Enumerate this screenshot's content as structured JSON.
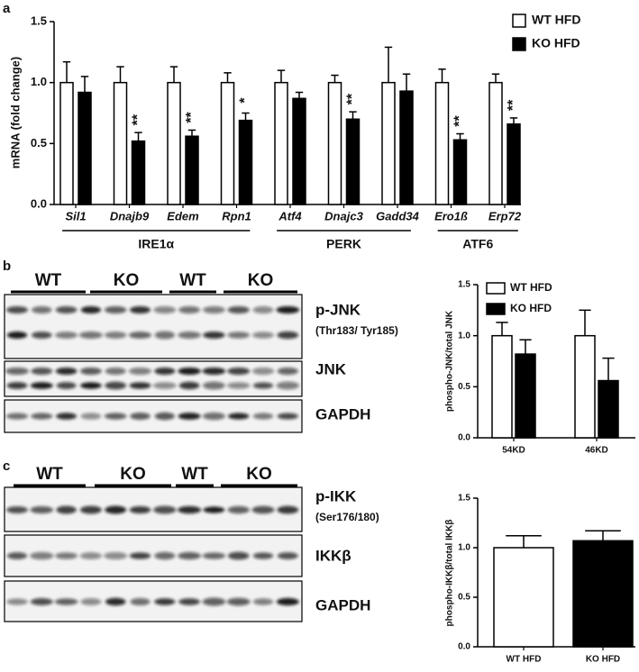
{
  "panel_labels": [
    "a",
    "b",
    "c"
  ],
  "chart_data": [
    {
      "type": "bar",
      "ylabel": "mRNA (fold change)",
      "categories": [
        "Sil1",
        "Dnajb9",
        "Edem",
        "Rpn1",
        "Atf4",
        "Dnajc3",
        "Gadd34",
        "Ero1ß",
        "Erp72"
      ],
      "series": [
        {
          "name": "WT HFD",
          "color": "#ffffff",
          "values": [
            1.0,
            1.0,
            1.0,
            1.0,
            1.0,
            1.0,
            1.0,
            1.0,
            1.0
          ],
          "errors": [
            0.17,
            0.13,
            0.13,
            0.08,
            0.1,
            0.06,
            0.29,
            0.11,
            0.07
          ]
        },
        {
          "name": "KO HFD",
          "color": "#000000",
          "values": [
            0.92,
            0.52,
            0.56,
            0.69,
            0.87,
            0.7,
            0.93,
            0.53,
            0.66
          ],
          "errors": [
            0.13,
            0.07,
            0.05,
            0.06,
            0.05,
            0.06,
            0.14,
            0.05,
            0.05
          ],
          "annotations": [
            null,
            "**",
            "**",
            "*",
            null,
            "**",
            null,
            "**",
            "**"
          ]
        }
      ],
      "groups": [
        {
          "label": "IRE1α",
          "categories": [
            "Sil1",
            "Dnajb9",
            "Edem",
            "Rpn1"
          ]
        },
        {
          "label": "PERK",
          "categories": [
            "Atf4",
            "Dnajc3",
            "Gadd34"
          ]
        },
        {
          "label": "ATF6",
          "categories": [
            "Ero1ß",
            "Erp72"
          ]
        }
      ],
      "ylim": [
        0,
        1.5
      ],
      "yticks": [
        {
          "value": 0,
          "label": "0.0"
        },
        {
          "value": 0.5,
          "label": "0.5"
        },
        {
          "value": 1,
          "label": "1.0"
        },
        {
          "value": 1.5,
          "label": "1.5"
        }
      ]
    },
    {
      "type": "bar",
      "ylabel": "phospho-JNK/total JNK",
      "categories": [
        "54KD",
        "46KD"
      ],
      "series": [
        {
          "name": "WT HFD",
          "color": "#ffffff",
          "values": [
            1.0,
            1.0
          ],
          "errors": [
            0.13,
            0.25
          ]
        },
        {
          "name": "KO HFD",
          "color": "#000000",
          "values": [
            0.82,
            0.56
          ],
          "errors": [
            0.14,
            0.22
          ]
        }
      ],
      "ylim": [
        0,
        1.5
      ],
      "yticks": [
        {
          "value": 0,
          "label": "0.0"
        },
        {
          "value": 0.5,
          "label": "0.5"
        },
        {
          "value": 1,
          "label": "1.0"
        },
        {
          "value": 1.5,
          "label": "1.5"
        }
      ]
    },
    {
      "type": "bar",
      "ylabel": "phospho-IKKβ/total IKKβ",
      "categories": [
        "WT HFD",
        "KO HFD"
      ],
      "values": [
        1.0,
        1.07
      ],
      "errors": [
        0.12,
        0.1
      ],
      "colors": [
        "#ffffff",
        "#000000"
      ],
      "ylim": [
        0,
        1.5
      ],
      "yticks": [
        {
          "value": 0,
          "label": "0.0"
        },
        {
          "value": 0.5,
          "label": "0.5"
        },
        {
          "value": 1,
          "label": "1.0"
        },
        {
          "value": 1.5,
          "label": "1.5"
        }
      ]
    }
  ],
  "blots": [
    {
      "header": [
        "WT",
        "KO",
        "WT",
        "KO"
      ],
      "labels": [
        "p-JNK",
        "(Thr183/ Tyr185)",
        "JNK",
        "GAPDH"
      ]
    },
    {
      "header": [
        "WT",
        "KO",
        "WT",
        "KO"
      ],
      "labels": [
        "p-IKK",
        "(Ser176/180)",
        "IKKβ",
        "GAPDH"
      ]
    }
  ]
}
